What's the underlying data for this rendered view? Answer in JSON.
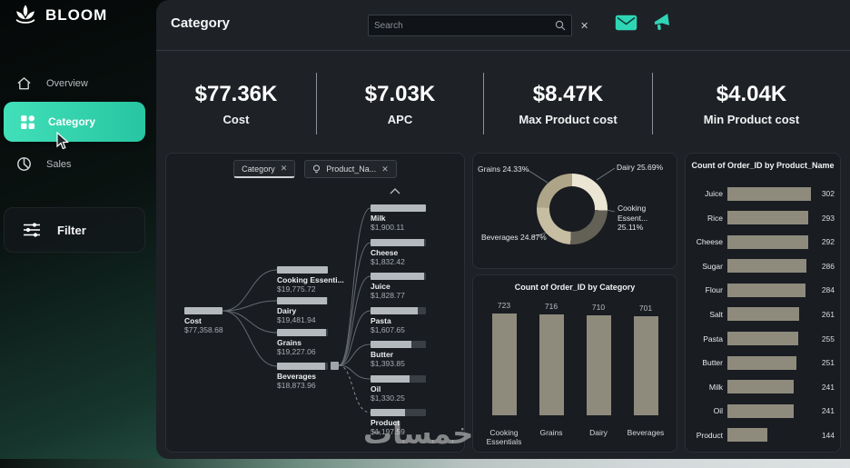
{
  "sidebar": {
    "brand": "BLOOM",
    "items": [
      {
        "label": "Overview"
      },
      {
        "label": "Category",
        "active": true
      },
      {
        "label": "Sales"
      }
    ],
    "filter_label": "Filter"
  },
  "header": {
    "title": "Category",
    "search_placeholder": "Search"
  },
  "kpis": [
    {
      "value": "$77.36K",
      "label": "Cost"
    },
    {
      "value": "$7.03K",
      "label": "APC"
    },
    {
      "value": "$8.47K",
      "label": "Max Product cost"
    },
    {
      "value": "$4.04K",
      "label": "Min Product cost"
    }
  ],
  "decomposition_tree": {
    "filters": [
      {
        "label": "Category"
      },
      {
        "label": "Product_Na..."
      }
    ],
    "root": {
      "label": "Cost",
      "value_text": "$77,358.68",
      "value": 77358.68
    },
    "level1": [
      {
        "label": "Cooking Essenti...",
        "value_text": "$19,775.72",
        "value": 19775.72
      },
      {
        "label": "Dairy",
        "value_text": "$19,481.94",
        "value": 19481.94
      },
      {
        "label": "Grains",
        "value_text": "$19,227.06",
        "value": 19227.06
      },
      {
        "label": "Beverages",
        "value_text": "$18,873.96",
        "value": 18873.96
      }
    ],
    "level2": [
      {
        "label": "Milk",
        "value_text": "$1,900.11",
        "value": 1900.11
      },
      {
        "label": "Cheese",
        "value_text": "$1,832.42",
        "value": 1832.42
      },
      {
        "label": "Juice",
        "value_text": "$1,828.77",
        "value": 1828.77
      },
      {
        "label": "Pasta",
        "value_text": "$1,607.65",
        "value": 1607.65
      },
      {
        "label": "Butter",
        "value_text": "$1,393.85",
        "value": 1393.85
      },
      {
        "label": "Oil",
        "value_text": "$1,330.25",
        "value": 1330.25
      },
      {
        "label": "Product",
        "value_text": "$1,197.59",
        "value": 1197.59
      }
    ]
  },
  "chart_data": [
    {
      "type": "pie",
      "subtype": "donut",
      "title": "",
      "legend_position": "around",
      "slices": [
        {
          "label": "Dairy",
          "value": 25.69,
          "pct_text": "25.69%",
          "color": "#ebe5d3"
        },
        {
          "label": "Cooking Essent...",
          "value": 25.11,
          "pct_text": "25.11%",
          "color": "#636155"
        },
        {
          "label": "Beverages",
          "value": 24.87,
          "pct_text": "24.87%",
          "color": "#c6bda2"
        },
        {
          "label": "Grains",
          "value": 24.33,
          "pct_text": "24.33%",
          "color": "#aea488"
        }
      ]
    },
    {
      "type": "bar",
      "orientation": "vertical",
      "title": "Count of Order_ID by Category",
      "categories": [
        "Cooking Essentials",
        "Grains",
        "Dairy",
        "Beverages"
      ],
      "values": [
        723,
        716,
        710,
        701
      ],
      "ylim": [
        0,
        723
      ],
      "bar_color": "#8e8b7d"
    },
    {
      "type": "bar",
      "orientation": "horizontal",
      "title": "Count of Order_ID by Product_Name",
      "categories": [
        "Juice",
        "Rice",
        "Cheese",
        "Sugar",
        "Flour",
        "Salt",
        "Pasta",
        "Butter",
        "Milk",
        "Oil",
        "Product"
      ],
      "values": [
        302,
        293,
        292,
        286,
        284,
        261,
        255,
        251,
        241,
        241,
        144
      ],
      "xlim": [
        0,
        302
      ],
      "bar_color": "#8e8b7d"
    }
  ],
  "icons": {
    "sidebar": [
      "lotus-logo-icon",
      "home-icon",
      "category-grid-icon",
      "pie-chart-icon",
      "filter-sliders-icon"
    ],
    "header": [
      "search-icon",
      "clear-icon",
      "mail-icon",
      "megaphone-icon"
    ],
    "tree": [
      "bulb-icon",
      "close-icon",
      "chevron-up-icon"
    ]
  },
  "colors": {
    "accent_teal": "#35d9b6",
    "bar_fill": "#8e8b7d",
    "panel_bg": "#1e2126",
    "tree_fill": "#b4b9be"
  },
  "watermark": "خمسات"
}
